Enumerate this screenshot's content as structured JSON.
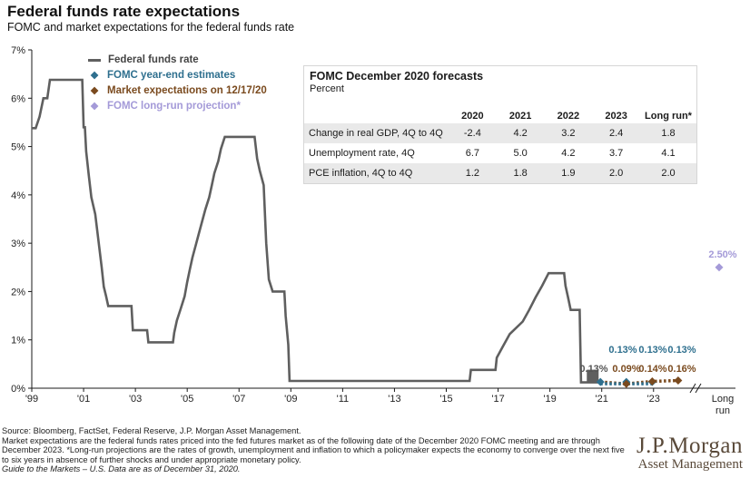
{
  "title": "Federal funds rate expectations",
  "subtitle": "FOMC and market expectations for the federal funds rate",
  "legend": [
    {
      "label": "Federal funds rate",
      "color": "#5f5f5f",
      "marker": "line"
    },
    {
      "label": "FOMC year-end estimates",
      "color": "#2e6f8e",
      "marker": "diamond"
    },
    {
      "label": "Market expectations on 12/17/20",
      "color": "#7a4a1e",
      "marker": "diamond"
    },
    {
      "label": "FOMC long-run projection*",
      "color": "#a49ad8",
      "marker": "diamond"
    }
  ],
  "forecast_table": {
    "title": "FOMC December 2020 forecasts",
    "subtitle": "Percent",
    "columns": [
      "2020",
      "2021",
      "2022",
      "2023",
      "Long run*"
    ],
    "rows": [
      {
        "label": "Change in real GDP, 4Q to 4Q",
        "values": [
          "-2.4",
          "4.2",
          "3.2",
          "2.4",
          "1.8"
        ]
      },
      {
        "label": "Unemployment rate, 4Q",
        "values": [
          "6.7",
          "5.0",
          "4.2",
          "3.7",
          "4.1"
        ]
      },
      {
        "label": "PCE inflation, 4Q to 4Q",
        "values": [
          "1.2",
          "1.8",
          "1.9",
          "2.0",
          "2.0"
        ]
      }
    ]
  },
  "chart_data": {
    "type": "line",
    "y_ticks": [
      "0%",
      "1%",
      "2%",
      "3%",
      "4%",
      "5%",
      "6%",
      "7%"
    ],
    "ylim": [
      0,
      7
    ],
    "x_ticks": [
      {
        "x": 1999,
        "label": "'99"
      },
      {
        "x": 2001,
        "label": "'01"
      },
      {
        "x": 2003,
        "label": "'03"
      },
      {
        "x": 2005,
        "label": "'05"
      },
      {
        "x": 2007,
        "label": "'07"
      },
      {
        "x": 2009,
        "label": "'09"
      },
      {
        "x": 2011,
        "label": "'11"
      },
      {
        "x": 2013,
        "label": "'13"
      },
      {
        "x": 2015,
        "label": "'15"
      },
      {
        "x": 2017,
        "label": "'17"
      },
      {
        "x": 2019,
        "label": "'19"
      },
      {
        "x": 2021,
        "label": "'21"
      },
      {
        "x": 2023,
        "label": "'23"
      }
    ],
    "long_run_label": "Long run",
    "fed_funds_series": [
      [
        1999.0,
        5.38
      ],
      [
        1999.15,
        5.38
      ],
      [
        1999.3,
        5.62
      ],
      [
        1999.45,
        6.0
      ],
      [
        1999.6,
        6.0
      ],
      [
        1999.7,
        6.38
      ],
      [
        2000.0,
        6.38
      ],
      [
        2000.15,
        6.38
      ],
      [
        2000.2,
        6.38
      ],
      [
        2000.35,
        6.38
      ],
      [
        2000.95,
        6.38
      ],
      [
        2001.0,
        5.4
      ],
      [
        2001.05,
        5.4
      ],
      [
        2001.1,
        4.9
      ],
      [
        2001.2,
        4.4
      ],
      [
        2001.3,
        3.95
      ],
      [
        2001.45,
        3.6
      ],
      [
        2001.55,
        3.15
      ],
      [
        2001.7,
        2.5
      ],
      [
        2001.78,
        2.1
      ],
      [
        2001.87,
        1.9
      ],
      [
        2001.95,
        1.7
      ],
      [
        2002.0,
        1.7
      ],
      [
        2002.85,
        1.7
      ],
      [
        2002.9,
        1.2
      ],
      [
        2003.45,
        1.2
      ],
      [
        2003.5,
        0.95
      ],
      [
        2004.45,
        0.95
      ],
      [
        2004.5,
        1.15
      ],
      [
        2004.6,
        1.4
      ],
      [
        2004.75,
        1.65
      ],
      [
        2004.9,
        1.9
      ],
      [
        2005.0,
        2.2
      ],
      [
        2005.1,
        2.45
      ],
      [
        2005.2,
        2.7
      ],
      [
        2005.35,
        3.0
      ],
      [
        2005.45,
        3.2
      ],
      [
        2005.6,
        3.5
      ],
      [
        2005.7,
        3.7
      ],
      [
        2005.85,
        3.95
      ],
      [
        2005.95,
        4.2
      ],
      [
        2006.05,
        4.45
      ],
      [
        2006.2,
        4.7
      ],
      [
        2006.3,
        4.95
      ],
      [
        2006.45,
        5.2
      ],
      [
        2007.6,
        5.2
      ],
      [
        2007.7,
        4.75
      ],
      [
        2007.8,
        4.5
      ],
      [
        2007.95,
        4.2
      ],
      [
        2008.05,
        3.0
      ],
      [
        2008.15,
        2.25
      ],
      [
        2008.3,
        2.0
      ],
      [
        2008.75,
        2.0
      ],
      [
        2008.8,
        1.5
      ],
      [
        2008.9,
        0.9
      ],
      [
        2008.95,
        0.15
      ],
      [
        2015.9,
        0.15
      ],
      [
        2015.95,
        0.38
      ],
      [
        2016.9,
        0.38
      ],
      [
        2016.95,
        0.63
      ],
      [
        2017.2,
        0.88
      ],
      [
        2017.45,
        1.12
      ],
      [
        2017.95,
        1.38
      ],
      [
        2018.2,
        1.62
      ],
      [
        2018.45,
        1.88
      ],
      [
        2018.7,
        2.12
      ],
      [
        2018.95,
        2.38
      ],
      [
        2019.55,
        2.38
      ],
      [
        2019.6,
        2.12
      ],
      [
        2019.7,
        1.88
      ],
      [
        2019.8,
        1.62
      ],
      [
        2020.15,
        1.62
      ],
      [
        2020.2,
        0.12
      ],
      [
        2020.95,
        0.12
      ]
    ],
    "fomc_estimates": [
      {
        "x": 2020.95,
        "y": 0.13,
        "label": "0.13%"
      },
      {
        "x": 2021.95,
        "y": 0.13,
        "label": "0.13%"
      },
      {
        "x": 2022.95,
        "y": 0.13,
        "label": "0.13%"
      }
    ],
    "market_expectations": [
      {
        "x": 2020.95,
        "y": 0.13,
        "label": "0.13%"
      },
      {
        "x": 2021.95,
        "y": 0.09,
        "label": "0.09%"
      },
      {
        "x": 2022.95,
        "y": 0.14,
        "label": "0.14%"
      },
      {
        "x": 2023.95,
        "y": 0.16,
        "label": "0.16%"
      }
    ],
    "long_run_projection": {
      "y": 2.5,
      "label": "2.50%"
    },
    "colors": {
      "fed_funds": "#5f5f5f",
      "fomc": "#2e6f8e",
      "market": "#7a4a1e",
      "long_run": "#a49ad8",
      "axis": "#1a1a1a"
    }
  },
  "footer": {
    "source": "Source: Bloomberg, FactSet, Federal Reserve, J.P. Morgan Asset Management.",
    "note": "Market expectations are the federal funds rates priced into the fed futures market as of the following date of the December 2020 FOMC meeting and are through December 2023. *Long-run projections are the rates of growth, unemployment and inflation to which a policymaker expects the economy to converge over the next five to six years in absence of further shocks and under appropriate monetary policy.",
    "gtm": "Guide to the Markets – U.S. Data are as of December 31, 2020."
  },
  "logo": {
    "name": "J.P.Morgan",
    "sub": "Asset Management"
  }
}
